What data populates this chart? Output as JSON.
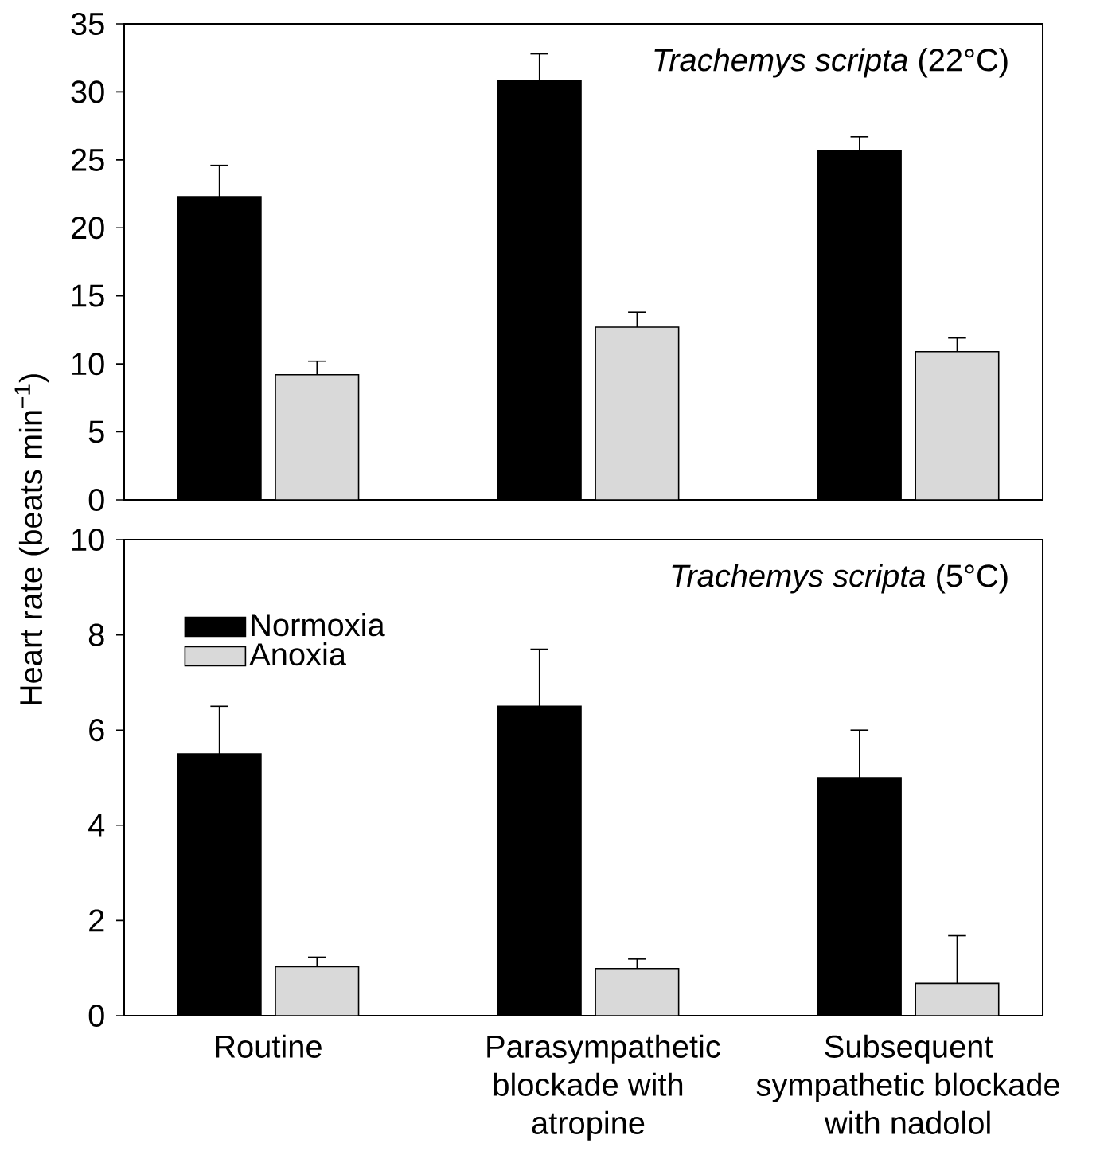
{
  "chart_data": [
    {
      "type": "bar",
      "title": "*Trachemys scripta* (22°C)",
      "categories": [
        null,
        null,
        null
      ],
      "tick_labels": "y",
      "legend": false,
      "ylim": [
        0,
        35
      ],
      "yticks": [
        0,
        5,
        10,
        15,
        20,
        25,
        30,
        35
      ],
      "series": [
        {
          "color": "#000000",
          "values": [
            22.3,
            30.8,
            25.7
          ],
          "errors": [
            2.3,
            2.0,
            1.0
          ]
        },
        {
          "color": "#d9d9d9",
          "values": [
            9.2,
            12.7,
            10.9
          ],
          "errors": [
            1.0,
            1.1,
            1.0
          ]
        }
      ]
    },
    {
      "type": "bar",
      "title": "*Trachemys scripta* (5°C)",
      "ylabel": "Heart rate (beats min$^{−1}$)",
      "categories": [
        "Routine",
        "Parasympathetic blockade with atropine",
        "Subsequent sympathetic blockade with nadolol"
      ],
      "legend": "top left",
      "ylim": [
        0,
        10
      ],
      "yticks": [
        0,
        2,
        4,
        6,
        8,
        10
      ],
      "series": [
        {
          "name": "Normoxia",
          "color": "#000000",
          "values": [
            5.5,
            6.5,
            5.0
          ],
          "errors": [
            1.0,
            1.2,
            1.0
          ]
        },
        {
          "name": "Anoxia",
          "color": "#d9d9d9",
          "values": [
            1.03,
            0.99,
            0.68
          ],
          "errors": [
            0.2,
            0.2,
            1.0
          ]
        }
      ]
    }
  ]
}
